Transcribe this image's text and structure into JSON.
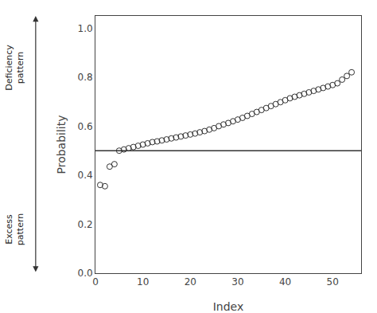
{
  "chart_data": {
    "type": "scatter",
    "x": [
      1,
      2,
      3,
      4,
      5,
      6,
      7,
      8,
      9,
      10,
      11,
      12,
      13,
      14,
      15,
      16,
      17,
      18,
      19,
      20,
      21,
      22,
      23,
      24,
      25,
      26,
      27,
      28,
      29,
      30,
      31,
      32,
      33,
      34,
      35,
      36,
      37,
      38,
      39,
      40,
      41,
      42,
      43,
      44,
      45,
      46,
      47,
      48,
      49,
      50,
      51,
      52,
      53,
      54
    ],
    "values": [
      0.36,
      0.355,
      0.435,
      0.445,
      0.5,
      0.505,
      0.51,
      0.515,
      0.52,
      0.525,
      0.53,
      0.535,
      0.538,
      0.542,
      0.546,
      0.55,
      0.554,
      0.558,
      0.562,
      0.566,
      0.57,
      0.575,
      0.58,
      0.586,
      0.592,
      0.6,
      0.607,
      0.613,
      0.62,
      0.627,
      0.634,
      0.642,
      0.65,
      0.658,
      0.666,
      0.674,
      0.682,
      0.69,
      0.698,
      0.706,
      0.714,
      0.72,
      0.726,
      0.732,
      0.738,
      0.744,
      0.75,
      0.756,
      0.762,
      0.768,
      0.775,
      0.79,
      0.805,
      0.82
    ],
    "threshold": 0.5,
    "xlim": [
      0,
      56
    ],
    "ylim": [
      0.0,
      1.05
    ],
    "xticks": [
      0,
      10,
      20,
      30,
      40,
      50
    ],
    "yticks": [
      {
        "value": 0,
        "label": "0.0"
      },
      0.2,
      0.4,
      0.6,
      0.8,
      {
        "value": 1,
        "label": "1.0"
      }
    ],
    "xlabel": "Index",
    "ylabel": "Probability",
    "color": "#333333",
    "marker": "circle-open",
    "grid": false,
    "annotations": [
      "Deficiency\npattern",
      "Excess\npattern"
    ]
  }
}
